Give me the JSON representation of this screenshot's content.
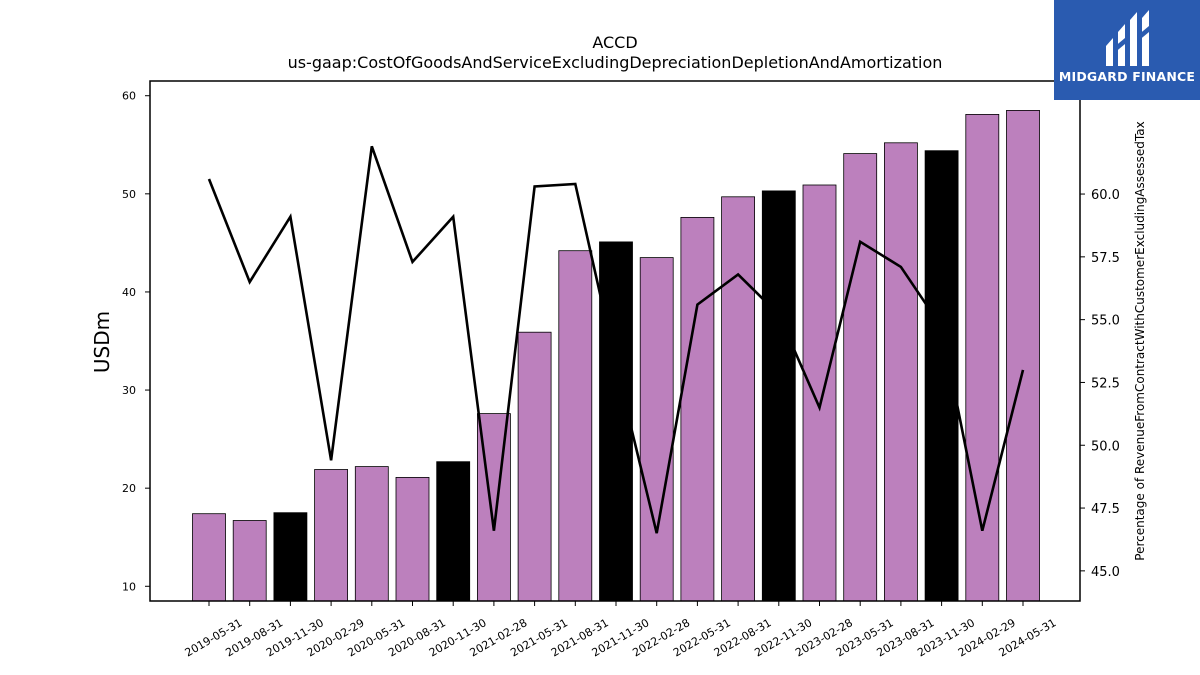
{
  "brand": {
    "name": "MIDGARD FINANCE",
    "color": "#2a5bb0"
  },
  "chart_data": {
    "type": "bar",
    "title": "ACCD",
    "subtitle": "us-gaap:CostOfGoodsAndServiceExcludingDepreciationDepletionAndAmortization",
    "ylabel": "USDm",
    "y2label": "Percentage of RevenueFromContractWithCustomerExcludingAssessedTax",
    "ylim": [
      8.5,
      61.5
    ],
    "y2lim": [
      43.8,
      64.5
    ],
    "yticks": [
      10,
      20,
      30,
      40,
      50,
      60
    ],
    "y2ticks": [
      45.0,
      47.5,
      50.0,
      52.5,
      55.0,
      57.5,
      60.0
    ],
    "categories": [
      "2019-05-31",
      "2019-08-31",
      "2019-11-30",
      "2020-02-29",
      "2020-05-31",
      "2020-08-31",
      "2020-11-30",
      "2021-02-28",
      "2021-05-31",
      "2021-08-31",
      "2021-11-30",
      "2022-02-28",
      "2022-05-31",
      "2022-08-31",
      "2022-11-30",
      "2023-02-28",
      "2023-05-31",
      "2023-08-31",
      "2023-11-30",
      "2024-02-29",
      "2024-05-31"
    ],
    "series": [
      {
        "type": "bar",
        "axis": "left",
        "values": [
          17.4,
          16.7,
          17.5,
          21.9,
          22.2,
          21.1,
          22.7,
          27.6,
          35.9,
          44.2,
          45.1,
          43.5,
          47.6,
          49.7,
          50.3,
          50.9,
          54.1,
          55.2,
          54.4,
          58.1,
          58.5
        ]
      },
      {
        "type": "line",
        "axis": "right",
        "color": "#000000",
        "values": [
          60.6,
          56.5,
          59.1,
          49.4,
          61.9,
          57.3,
          59.1,
          46.6,
          60.3,
          60.4,
          53.2,
          46.5,
          55.6,
          56.8,
          55.2,
          51.5,
          58.1,
          57.1,
          54.7,
          46.6,
          53.0
        ]
      }
    ],
    "bar_colors": {
      "default": "#bc80bd",
      "highlight": "#000000"
    },
    "highlight_indices": [
      2,
      6,
      10,
      14,
      18
    ],
    "grid": false,
    "legend": "none"
  }
}
